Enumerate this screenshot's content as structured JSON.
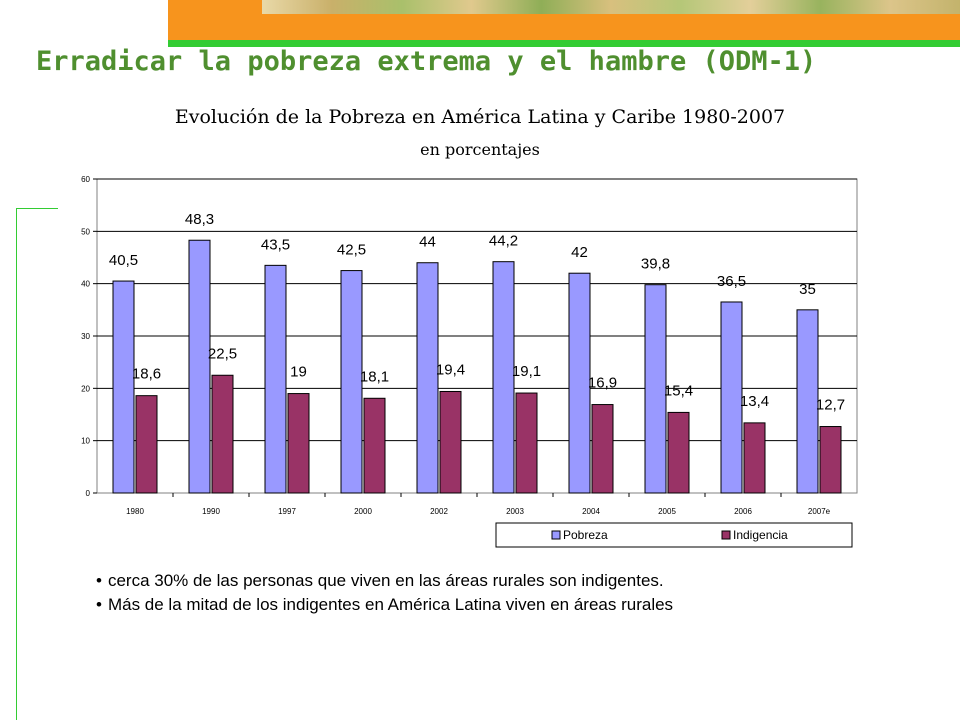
{
  "page": {
    "title": "Erradicar la pobreza extrema y el hambre (ODM-1)",
    "colors": {
      "orange": "#f7941d",
      "green": "#33cc33",
      "title_green": "#4f8f2f"
    }
  },
  "bullets": [
    "cerca 30% de las personas que viven en las áreas rurales son indigentes.",
    "Más de la mitad de los indigentes en América Latina viven en áreas rurales"
  ],
  "chart_data": {
    "type": "bar",
    "title": "Evolución de la Pobreza en América Latina y Caribe 1980-2007",
    "subtitle": "en porcentajes",
    "categories": [
      "1980",
      "1990",
      "1997",
      "2000",
      "2002",
      "2003",
      "2004",
      "2005",
      "2006",
      "2007e"
    ],
    "series": [
      {
        "name": "Pobreza",
        "color": "#9999ff",
        "values": [
          40.5,
          48.3,
          43.5,
          42.5,
          44,
          44.2,
          42,
          39.8,
          36.5,
          35
        ],
        "labels": [
          "40,5",
          "48,3",
          "43,5",
          "42,5",
          "44",
          "44,2",
          "42",
          "39,8",
          "36,5",
          "35"
        ]
      },
      {
        "name": "Indigencia",
        "color": "#993366",
        "values": [
          18.6,
          22.5,
          19,
          18.1,
          19.4,
          19.1,
          16.9,
          15.4,
          13.4,
          12.7
        ],
        "labels": [
          "18,6",
          "22,5",
          "19",
          "18,1",
          "19,4",
          "19,1",
          "16,9",
          "15,4",
          "13,4",
          "12,7"
        ]
      }
    ],
    "yticks": [
      "0",
      "10",
      "20",
      "30",
      "40",
      "50",
      "60"
    ],
    "ylim": [
      0,
      60
    ],
    "grid": true,
    "legend": "bottom-right"
  }
}
